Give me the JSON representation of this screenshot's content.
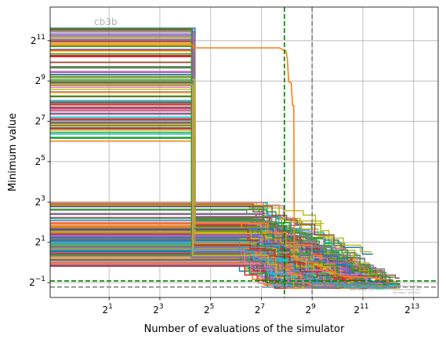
{
  "chart_data": {
    "type": "line",
    "title": "",
    "watermark": "cb3b",
    "xlabel": "Number of evaluations of the simulator",
    "ylabel": "Minimum value",
    "xscale": "log2",
    "yscale": "log2",
    "xlim": [
      0.4,
      16000
    ],
    "ylim": [
      0.3,
      6500
    ],
    "grid": true,
    "x_ticks": [
      {
        "value": 2,
        "base": "2",
        "exp": "1"
      },
      {
        "value": 8,
        "base": "2",
        "exp": "3"
      },
      {
        "value": 32,
        "base": "2",
        "exp": "5"
      },
      {
        "value": 128,
        "base": "2",
        "exp": "7"
      },
      {
        "value": 512,
        "base": "2",
        "exp": "9"
      },
      {
        "value": 2048,
        "base": "2",
        "exp": "11"
      },
      {
        "value": 8192,
        "base": "2",
        "exp": "13"
      }
    ],
    "y_ticks": [
      {
        "value": 0.5,
        "base": "2",
        "exp": "−1"
      },
      {
        "value": 2,
        "base": "2",
        "exp": "1"
      },
      {
        "value": 8,
        "base": "2",
        "exp": "3"
      },
      {
        "value": 32,
        "base": "2",
        "exp": "5"
      },
      {
        "value": 128,
        "base": "2",
        "exp": "7"
      },
      {
        "value": 512,
        "base": "2",
        "exp": "9"
      },
      {
        "value": 2048,
        "base": "2",
        "exp": "11"
      }
    ],
    "reference_lines": [
      {
        "orientation": "vertical",
        "x": 240,
        "color": "#008000",
        "style": "dashed"
      },
      {
        "orientation": "vertical",
        "x": 512,
        "color": "#808080",
        "style": "dashed"
      },
      {
        "orientation": "horizontal",
        "y": 0.53,
        "color": "#008000",
        "style": "dashed"
      },
      {
        "orientation": "horizontal",
        "y": 0.43,
        "color": "#808080",
        "style": "dashed"
      }
    ],
    "series_count": 260,
    "colors": [
      "#1f77b4",
      "#ff7f0e",
      "#2ca02c",
      "#d62728",
      "#9467bd",
      "#8c564b",
      "#e377c2",
      "#7f7f7f",
      "#bcbd22",
      "#17becf"
    ],
    "highlight_series": {
      "color": "#ff7f0e",
      "points": [
        [
          0.4,
          1750
        ],
        [
          20,
          1750
        ],
        [
          20,
          1600
        ],
        [
          210,
          1600
        ],
        [
          230,
          1500
        ],
        [
          250,
          1450
        ],
        [
          260,
          1100
        ],
        [
          270,
          500
        ],
        [
          290,
          480
        ],
        [
          300,
          220
        ],
        [
          310,
          220
        ],
        [
          315,
          1.1
        ],
        [
          400,
          1.1
        ],
        [
          420,
          1.0
        ],
        [
          600,
          0.98
        ],
        [
          660,
          0.8
        ],
        [
          900,
          0.72
        ],
        [
          1200,
          0.62
        ],
        [
          2500,
          0.6
        ],
        [
          3200,
          0.56
        ],
        [
          4000,
          0.53
        ]
      ]
    }
  },
  "footer_notes": [
    "Commit: b59d13d9aa7fe1f6ca7b7ae65d8e91b70e8c3d4a",
    "Repo: git@github.com:Kirill-Lyubimov-mctool.git",
    "Hostname: galerkin"
  ]
}
